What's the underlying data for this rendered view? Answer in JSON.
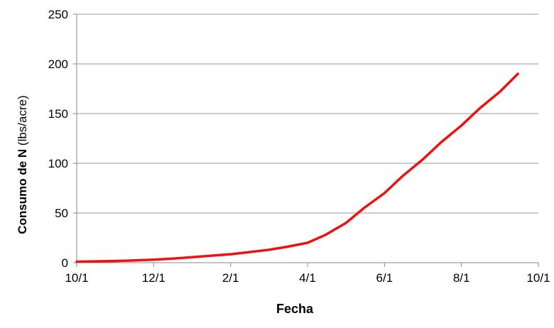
{
  "chart_data": {
    "type": "line",
    "title": "",
    "xlabel": "Fecha",
    "ylabel_bold": "Consumo de N",
    "ylabel_unit": " (lbs/acre)",
    "x_ticks": [
      "10/1",
      "12/1",
      "2/1",
      "4/1",
      "6/1",
      "8/1",
      "10/1"
    ],
    "y_ticks": [
      "0",
      "50",
      "100",
      "150",
      "200",
      "250"
    ],
    "ylim": [
      0,
      250
    ],
    "grid": "horizontal",
    "colors": {
      "line": "#ee1111",
      "grid": "#999999",
      "axis": "#888888"
    },
    "series": [
      {
        "x": [
          "10/1",
          "10/15",
          "11/1",
          "11/15",
          "12/1",
          "12/15",
          "1/1",
          "1/15",
          "2/1",
          "2/15",
          "3/1",
          "3/15",
          "4/1",
          "4/15",
          "5/1",
          "5/15",
          "6/1",
          "6/15",
          "7/1",
          "7/15",
          "8/1",
          "8/15",
          "9/1",
          "9/15"
        ],
        "y": [
          1,
          1.3,
          1.7,
          2.2,
          3,
          4,
          5.5,
          7,
          8.5,
          10.5,
          13,
          16,
          20,
          28,
          40,
          55,
          70,
          87,
          104,
          121,
          138,
          155,
          172,
          190
        ]
      }
    ]
  }
}
